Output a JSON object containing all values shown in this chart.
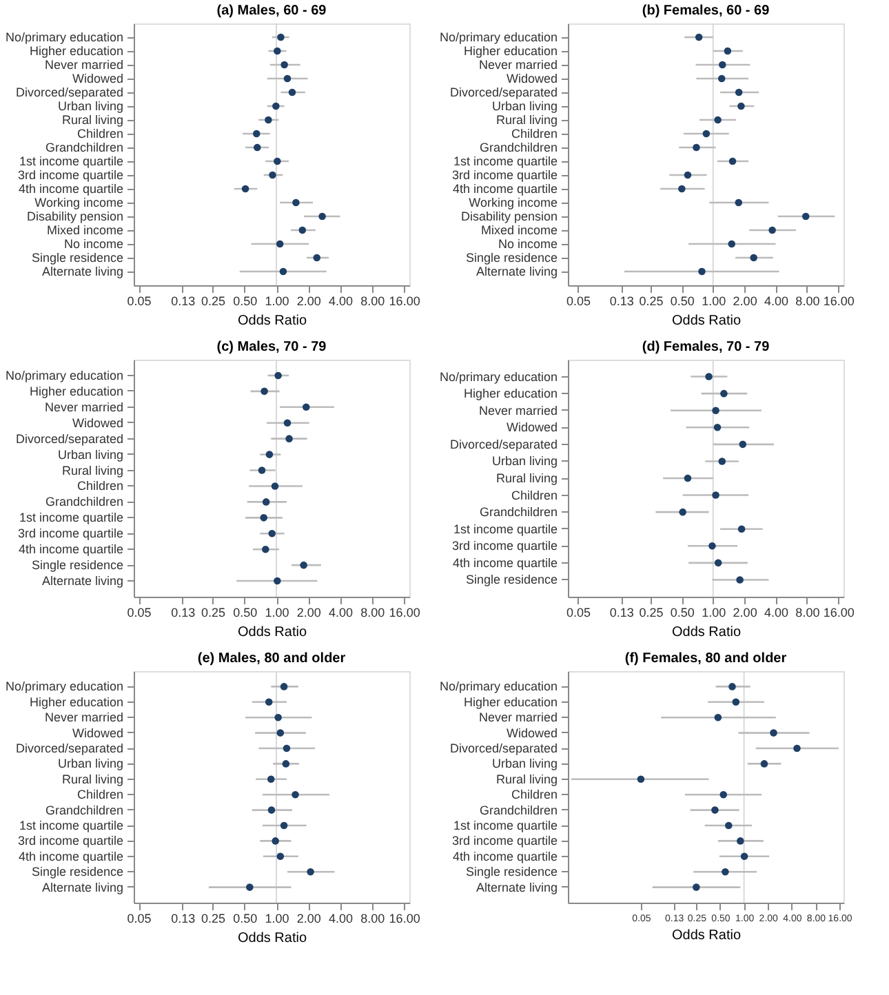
{
  "chart_data": [
    {
      "type": "scatter",
      "orientation": "horizontal",
      "title": "(a) Males, 60 - 69",
      "xlabel": "Odds Ratio",
      "log": "x",
      "grid": false,
      "marker": "circle",
      "color": "#1f3f66",
      "categories": [
        "No/primary education",
        "Higher education",
        "Never married",
        "Widowed",
        "Divorced/separated",
        "Urban living",
        "Rural living",
        "Children",
        "Grandchildren",
        "1st income quartile",
        "3rd income quartile",
        "4th income quartile",
        "Working income",
        "Disability pension",
        "Mixed income",
        "No income",
        "Single residence",
        "Alternate living"
      ],
      "values": [
        1.1,
        1.02,
        1.19,
        1.27,
        1.41,
        0.99,
        0.84,
        0.65,
        0.66,
        1.02,
        0.92,
        0.51,
        1.53,
        2.71,
        1.76,
        1.08,
        2.41,
        1.16
      ],
      "errors": [
        [
          0.91,
          1.32
        ],
        [
          0.84,
          1.24
        ],
        [
          0.87,
          1.68
        ],
        [
          0.82,
          1.98
        ],
        [
          1.1,
          1.87
        ],
        [
          0.82,
          1.19
        ],
        [
          0.68,
          1.05
        ],
        [
          0.48,
          0.87
        ],
        [
          0.51,
          0.85
        ],
        [
          0.79,
          1.31
        ],
        [
          0.76,
          1.15
        ],
        [
          0.4,
          0.66
        ],
        [
          1.08,
          2.21
        ],
        [
          1.82,
          4.0
        ],
        [
          1.37,
          2.34
        ],
        [
          0.58,
          2.02
        ],
        [
          1.93,
          3.12
        ],
        [
          0.45,
          2.97
        ]
      ],
      "xlim": [
        0.045,
        18
      ],
      "xticks": [
        {
          "value": 0.05,
          "label": "0.05"
        },
        {
          "value": 0.13,
          "label": "0.13"
        },
        {
          "value": 0.25,
          "label": "0.25"
        },
        {
          "value": 0.5,
          "label": "0.50"
        },
        {
          "value": 1,
          "label": "1.00"
        },
        {
          "value": 2,
          "label": "2.00"
        },
        {
          "value": 4,
          "label": "4.00"
        },
        {
          "value": 8,
          "label": "8.00"
        },
        {
          "value": 16,
          "label": "16.00"
        }
      ],
      "ref_lines": [
        {
          "axis": "x",
          "value": 1,
          "color": "#d9d9d9"
        }
      ]
    },
    {
      "type": "scatter",
      "orientation": "horizontal",
      "title": "(b) Females, 60 - 69",
      "xlabel": "Odds Ratio",
      "log": "x",
      "grid": false,
      "marker": "circle",
      "color": "#1f3f66",
      "categories": [
        "No/primary education",
        "Higher education",
        "Never married",
        "Widowed",
        "Divorced/separated",
        "Urban living",
        "Rural living",
        "Children",
        "Grandchildren",
        "1st income quartile",
        "3rd income quartile",
        "4th income quartile",
        "Working income",
        "Disability pension",
        "Mixed income",
        "No income",
        "Single residence",
        "Alternate living"
      ],
      "values": [
        0.73,
        1.38,
        1.23,
        1.21,
        1.77,
        1.86,
        1.11,
        0.86,
        0.69,
        1.54,
        0.57,
        0.5,
        1.76,
        7.8,
        3.71,
        1.51,
        2.46,
        0.78
      ],
      "errors": [
        [
          0.53,
          1.0
        ],
        [
          1.0,
          1.93
        ],
        [
          0.68,
          2.27
        ],
        [
          0.69,
          2.19
        ],
        [
          1.17,
          2.76
        ],
        [
          1.44,
          2.48
        ],
        [
          0.74,
          1.66
        ],
        [
          0.52,
          1.42
        ],
        [
          0.47,
          1.06
        ],
        [
          1.1,
          2.19
        ],
        [
          0.38,
          0.87
        ],
        [
          0.31,
          0.83
        ],
        [
          0.92,
          3.43
        ],
        [
          4.2,
          14.8
        ],
        [
          2.23,
          6.27
        ],
        [
          0.58,
          4.0
        ],
        [
          1.64,
          3.78
        ],
        [
          0.14,
          4.32
        ]
      ],
      "xlim": [
        0.04,
        18
      ],
      "xticks": [
        {
          "value": 0.05,
          "label": "0.05"
        },
        {
          "value": 0.13,
          "label": "0.13"
        },
        {
          "value": 0.25,
          "label": "0.25"
        },
        {
          "value": 0.5,
          "label": "0.50"
        },
        {
          "value": 1,
          "label": "1.00"
        },
        {
          "value": 2,
          "label": "2.00"
        },
        {
          "value": 4,
          "label": "4.00"
        },
        {
          "value": 8,
          "label": "8.00"
        },
        {
          "value": 16,
          "label": "16.00"
        }
      ],
      "ref_lines": [
        {
          "axis": "x",
          "value": 1,
          "color": "#d9d9d9"
        }
      ]
    },
    {
      "type": "scatter",
      "orientation": "horizontal",
      "title": "(c) Males, 70 - 79",
      "xlabel": "Odds Ratio",
      "log": "x",
      "grid": false,
      "marker": "circle",
      "color": "#1f3f66",
      "categories": [
        "No/primary education",
        "Higher education",
        "Never married",
        "Widowed",
        "Divorced/separated",
        "Urban living",
        "Rural living",
        "Children",
        "Grandchildren",
        "1st income quartile",
        "3rd income quartile",
        "4th income quartile",
        "Single residence",
        "Alternate living"
      ],
      "values": [
        1.04,
        0.77,
        1.91,
        1.27,
        1.32,
        0.86,
        0.73,
        0.97,
        0.8,
        0.76,
        0.91,
        0.79,
        1.81,
        1.02
      ],
      "errors": [
        [
          0.83,
          1.31
        ],
        [
          0.57,
          1.07
        ],
        [
          1.08,
          3.51
        ],
        [
          0.81,
          2.04
        ],
        [
          0.89,
          1.95
        ],
        [
          0.7,
          1.1
        ],
        [
          0.56,
          0.98
        ],
        [
          0.55,
          1.76
        ],
        [
          0.53,
          1.25
        ],
        [
          0.51,
          1.14
        ],
        [
          0.7,
          1.19
        ],
        [
          0.6,
          1.06
        ],
        [
          1.39,
          2.64
        ],
        [
          0.42,
          2.43
        ]
      ],
      "xlim": [
        0.045,
        18
      ],
      "xticks": [
        {
          "value": 0.05,
          "label": "0.05"
        },
        {
          "value": 0.13,
          "label": "0.13"
        },
        {
          "value": 0.25,
          "label": "0.25"
        },
        {
          "value": 0.5,
          "label": "0.50"
        },
        {
          "value": 1,
          "label": "1.00"
        },
        {
          "value": 2,
          "label": "2.00"
        },
        {
          "value": 4,
          "label": "4.00"
        },
        {
          "value": 8,
          "label": "8.00"
        },
        {
          "value": 16,
          "label": "16.00"
        }
      ],
      "ref_lines": [
        {
          "axis": "x",
          "value": 1,
          "color": "#d9d9d9"
        }
      ]
    },
    {
      "type": "scatter",
      "orientation": "horizontal",
      "title": "(d) Females, 70 - 79",
      "xlabel": "Odds Ratio",
      "log": "x",
      "grid": false,
      "marker": "circle",
      "color": "#1f3f66",
      "categories": [
        "No/primary education",
        "Higher education",
        "Never married",
        "Widowed",
        "Divorced/separated",
        "Urban living",
        "Rural living",
        "Children",
        "Grandchildren",
        "1st income quartile",
        "3rd income quartile",
        "4th income quartile",
        "Single residence"
      ],
      "values": [
        0.91,
        1.27,
        1.06,
        1.1,
        1.93,
        1.22,
        0.57,
        1.06,
        0.51,
        1.88,
        0.98,
        1.12,
        1.81
      ],
      "errors": [
        [
          0.61,
          1.37
        ],
        [
          0.77,
          2.13
        ],
        [
          0.39,
          2.92
        ],
        [
          0.55,
          2.23
        ],
        [
          1.0,
          3.85
        ],
        [
          0.84,
          1.76
        ],
        [
          0.33,
          1.0
        ],
        [
          0.51,
          2.19
        ],
        [
          0.28,
          0.91
        ],
        [
          1.17,
          3.0
        ],
        [
          0.57,
          1.72
        ],
        [
          0.58,
          2.15
        ],
        [
          0.98,
          3.43
        ]
      ],
      "xlim": [
        0.04,
        18
      ],
      "xticks": [
        {
          "value": 0.05,
          "label": "0.05"
        },
        {
          "value": 0.13,
          "label": "0.13"
        },
        {
          "value": 0.25,
          "label": "0.25"
        },
        {
          "value": 0.5,
          "label": "0.50"
        },
        {
          "value": 1,
          "label": "1.00"
        },
        {
          "value": 2,
          "label": "2.00"
        },
        {
          "value": 4,
          "label": "4.00"
        },
        {
          "value": 8,
          "label": "8.00"
        },
        {
          "value": 16,
          "label": "16.00"
        }
      ],
      "ref_lines": [
        {
          "axis": "x",
          "value": 1,
          "color": "#d9d9d9"
        }
      ]
    },
    {
      "type": "scatter",
      "orientation": "horizontal",
      "title": "(e) Males, 80 and older",
      "xlabel": "Odds Ratio",
      "log": "x",
      "grid": false,
      "marker": "circle",
      "color": "#1f3f66",
      "categories": [
        "No/primary education",
        "Higher education",
        "Never married",
        "Widowed",
        "Divorced/separated",
        "Urban living",
        "Rural living",
        "Children",
        "Grandchildren",
        "1st income quartile",
        "3rd income quartile",
        "4th income quartile",
        "Single residence",
        "Alternate living"
      ],
      "values": [
        1.18,
        0.85,
        1.04,
        1.09,
        1.25,
        1.23,
        0.89,
        1.51,
        0.9,
        1.18,
        0.98,
        1.09,
        2.1,
        0.56
      ],
      "errors": [
        [
          0.89,
          1.61
        ],
        [
          0.59,
          1.25
        ],
        [
          0.51,
          2.16
        ],
        [
          0.63,
          1.9
        ],
        [
          0.68,
          2.31
        ],
        [
          0.93,
          1.64
        ],
        [
          0.64,
          1.25
        ],
        [
          0.74,
          3.17
        ],
        [
          0.59,
          1.41
        ],
        [
          0.74,
          1.92
        ],
        [
          0.7,
          1.38
        ],
        [
          0.75,
          1.61
        ],
        [
          1.27,
          3.54
        ],
        [
          0.23,
          1.38
        ]
      ],
      "xlim": [
        0.045,
        18
      ],
      "xticks": [
        {
          "value": 0.05,
          "label": "0.05"
        },
        {
          "value": 0.13,
          "label": "0.13"
        },
        {
          "value": 0.25,
          "label": "0.25"
        },
        {
          "value": 0.5,
          "label": "0.50"
        },
        {
          "value": 1,
          "label": "1.00"
        },
        {
          "value": 2,
          "label": "2.00"
        },
        {
          "value": 4,
          "label": "4.00"
        },
        {
          "value": 8,
          "label": "8.00"
        },
        {
          "value": 16,
          "label": "16.00"
        }
      ],
      "ref_lines": [
        {
          "axis": "x",
          "value": 1,
          "color": "#d9d9d9"
        }
      ]
    },
    {
      "type": "scatter",
      "orientation": "horizontal",
      "title": "(f) Females, 80 and older",
      "xlabel": "Odds Ratio",
      "log": "x",
      "grid": false,
      "marker": "circle",
      "color": "#1f3f66",
      "categories": [
        "No/primary education",
        "Higher education",
        "Never married",
        "Widowed",
        "Divorced/separated",
        "Urban living",
        "Rural living",
        "Children",
        "Grandchildren",
        "1st income quartile",
        "3rd income quartile",
        "4th income quartile",
        "Single residence",
        "Alternate living"
      ],
      "values": [
        0.71,
        0.79,
        0.47,
        2.36,
        4.66,
        1.8,
        0.05,
        0.55,
        0.43,
        0.64,
        0.9,
        1.01,
        0.58,
        0.25
      ],
      "errors": [
        [
          0.44,
          1.2
        ],
        [
          0.35,
          1.8
        ],
        [
          0.09,
          2.52
        ],
        [
          0.85,
          6.69
        ],
        [
          1.41,
          15.6
        ],
        [
          1.11,
          2.94
        ],
        [
          0.0066,
          0.36
        ],
        [
          0.18,
          1.67
        ],
        [
          0.21,
          0.87
        ],
        [
          0.32,
          1.26
        ],
        [
          0.47,
          1.76
        ],
        [
          0.49,
          2.08
        ],
        [
          0.23,
          1.45
        ],
        [
          0.07,
          0.9
        ]
      ],
      "xlim": [
        0.006,
        18
      ],
      "xticks": [
        {
          "value": 0.05,
          "label": "0.05"
        },
        {
          "value": 0.13,
          "label": "0.13"
        },
        {
          "value": 0.25,
          "label": "0.25"
        },
        {
          "value": 0.5,
          "label": "0.50"
        },
        {
          "value": 1,
          "label": "1.00"
        },
        {
          "value": 2,
          "label": "2.00"
        },
        {
          "value": 4,
          "label": "4.00"
        },
        {
          "value": 8,
          "label": "8.00"
        },
        {
          "value": 16,
          "label": "16.00"
        }
      ],
      "ref_lines": [
        {
          "axis": "x",
          "value": 1,
          "color": "#d9d9d9"
        }
      ]
    }
  ]
}
